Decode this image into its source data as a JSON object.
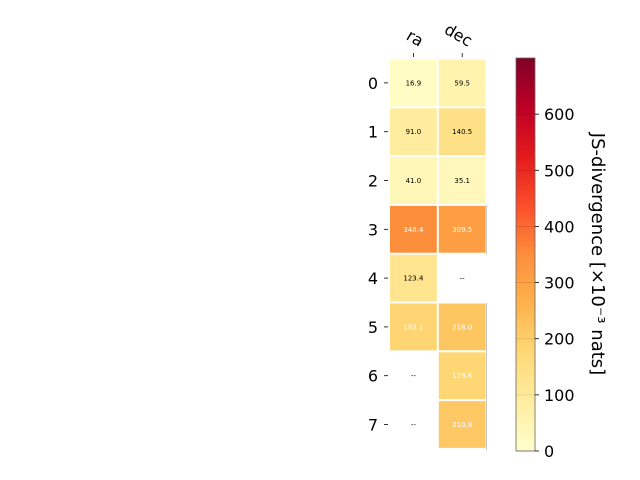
{
  "chart_data": {
    "type": "heatmap",
    "columns": [
      "ra",
      "dec"
    ],
    "rows": [
      "0",
      "1",
      "2",
      "3",
      "4",
      "5",
      "6",
      "7"
    ],
    "values": [
      [
        16.9,
        59.5
      ],
      [
        91.0,
        140.5
      ],
      [
        41.0,
        35.1
      ],
      [
        348.4,
        309.5
      ],
      [
        123.4,
        null
      ],
      [
        183.1,
        218.0
      ],
      [
        null,
        179.6
      ],
      [
        null,
        210.9
      ]
    ],
    "cell_labels": [
      [
        "16.9",
        "59.5"
      ],
      [
        "91.0",
        "140.5"
      ],
      [
        "41.0",
        "35.1"
      ],
      [
        "348.4",
        "309.5"
      ],
      [
        "123.4",
        "--"
      ],
      [
        "183.1",
        "218.0"
      ],
      [
        "--",
        "179.6"
      ],
      [
        "--",
        "210.9"
      ]
    ],
    "colorbar": {
      "label": "JS-divergence [×10⁻³ nats]",
      "range": [
        0,
        700
      ],
      "ticks": [
        0,
        100,
        200,
        300,
        400,
        500,
        600
      ],
      "tick_labels": [
        "0",
        "100",
        "200",
        "300",
        "400",
        "500",
        "600"
      ],
      "colormap": "YlOrRd"
    }
  }
}
